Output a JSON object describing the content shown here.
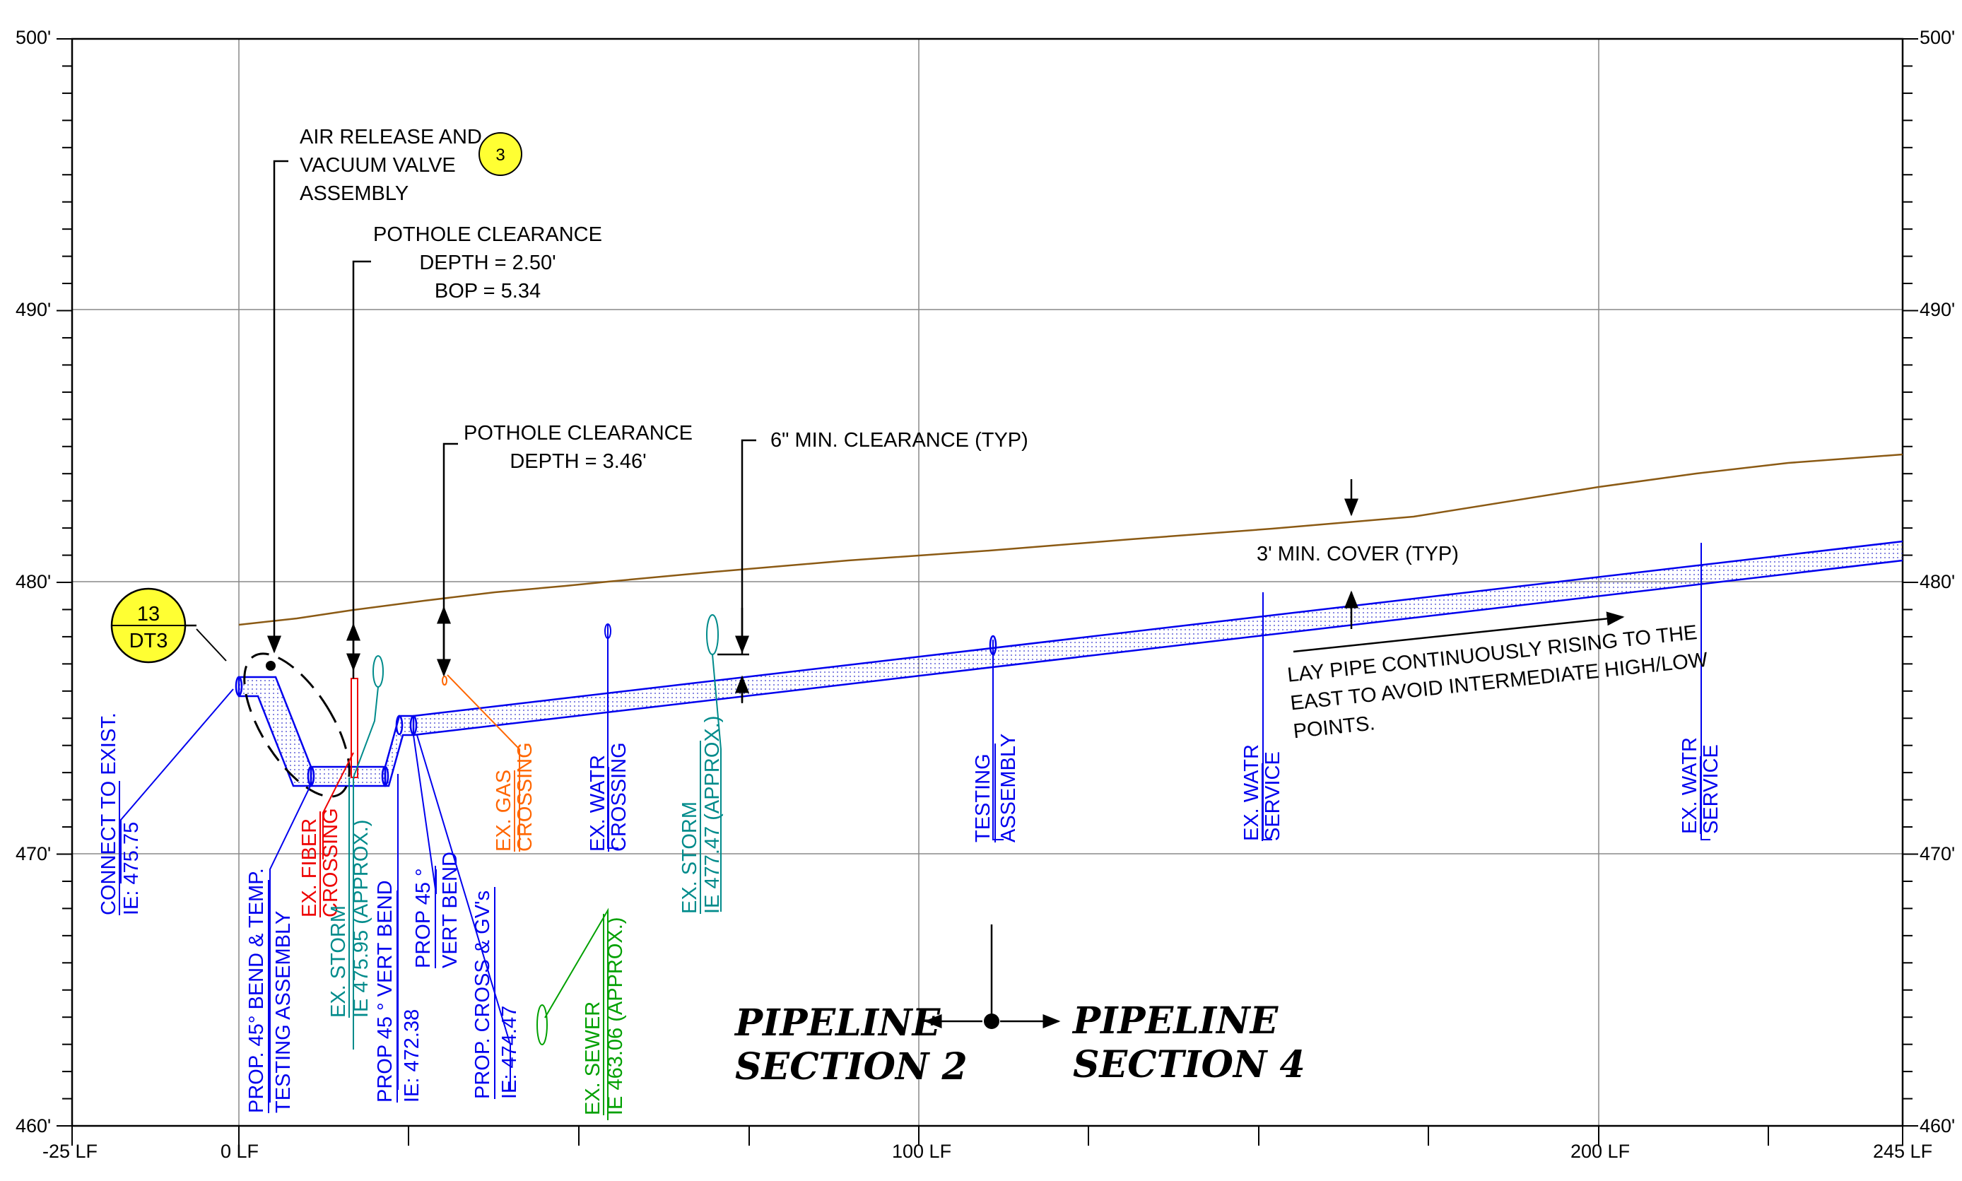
{
  "axes": {
    "y_left": [
      "500'",
      "490'",
      "480'",
      "470'",
      "460'"
    ],
    "y_right": [
      "500'",
      "490'",
      "480'",
      "470'",
      "460'"
    ],
    "x": [
      "-25 LF",
      "0 LF",
      "100 LF",
      "200 LF",
      "245 LF"
    ]
  },
  "callout_13": {
    "top": "13",
    "bottom": "DT3"
  },
  "callout_3": "3",
  "notes": {
    "air_release": [
      "AIR RELEASE AND",
      "VACUUM VALVE",
      "ASSEMBLY"
    ],
    "pothole_1": [
      "POTHOLE CLEARANCE",
      "DEPTH = 2.50'",
      "BOP = 5.34"
    ],
    "pothole_2": [
      "POTHOLE CLEARANCE",
      "DEPTH = 3.46'"
    ],
    "min_clearance": "6\"  MIN. CLEARANCE (TYP)",
    "min_cover": "3' MIN. COVER (TYP)",
    "lay_pipe": [
      "LAY PIPE CONTINUOUSLY RISING TO THE",
      "EAST  TO AVOID INTERMEDIATE HIGH/LOW",
      "POINTS."
    ]
  },
  "labels": {
    "connect": [
      "CONNECT TO EXIST.",
      "IE: 475.75"
    ],
    "prop_45_bend": [
      "PROP. 45° BEND & TEMP.",
      "TESTING ASSEMBLY"
    ],
    "fiber": [
      "EX. FIBER",
      "CROSSING"
    ],
    "storm_1": [
      "EX. STORM",
      "IE 475.95 (APPROX.)"
    ],
    "prop_45_vert": [
      "PROP 45 °  VERT BEND",
      "IE: 472.38"
    ],
    "prop_45_vert_2": [
      "PROP 45 °",
      "VERT BEND"
    ],
    "prop_cross": [
      "PROP. CROSS & GV's",
      "IE: 474.47"
    ],
    "sewer": [
      "EX. SEWER",
      "IE 463.06 (APPROX.)"
    ],
    "gas": [
      "EX. GAS",
      "CROSSING"
    ],
    "water_crossing": [
      "EX. WATR",
      "CROSSING"
    ],
    "storm_2": [
      "EX. STORM",
      "IE 477.47 (APPROX.)"
    ],
    "testing": [
      "TESTING",
      "ASSEMBLY"
    ],
    "water_service_1": [
      "EX. WATR",
      "SERVICE"
    ],
    "water_service_2": [
      "EX. WATR",
      "SERVICE"
    ]
  },
  "section_left": [
    "PIPELINE",
    "SECTION 2"
  ],
  "section_right": [
    "PIPELINE",
    "SECTION 4"
  ],
  "colors": {
    "pipe": "#0000ee",
    "ground": "#8b5a14",
    "fiber": "#ee0000",
    "storm": "#008b8b",
    "gas": "#ff6600",
    "sewer": "#00a000",
    "callout": "#ffff33"
  }
}
